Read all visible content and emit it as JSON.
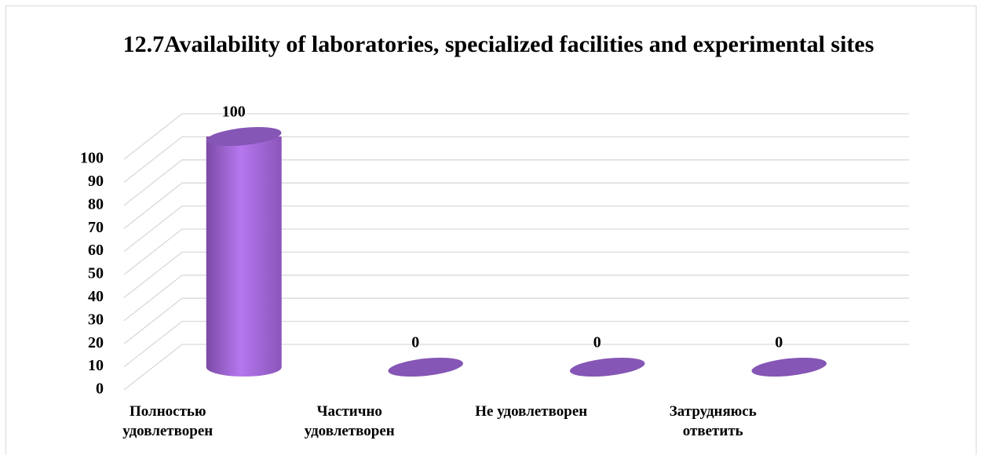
{
  "chart_data": {
    "type": "bar3d",
    "title": "12.7Availability of laboratories, specialized facilities and experimental sites",
    "categories": [
      "Полностью удовлетворен",
      "Частично удовлетворен",
      "Не удовлетворен",
      "Затрудняюсь ответить"
    ],
    "values": [
      100,
      0,
      0,
      0
    ],
    "color": "#a870e3",
    "ylim": [
      0,
      100
    ],
    "yticks": [
      0,
      10,
      20,
      30,
      40,
      50,
      60,
      70,
      80,
      90,
      100
    ],
    "grid": true
  }
}
